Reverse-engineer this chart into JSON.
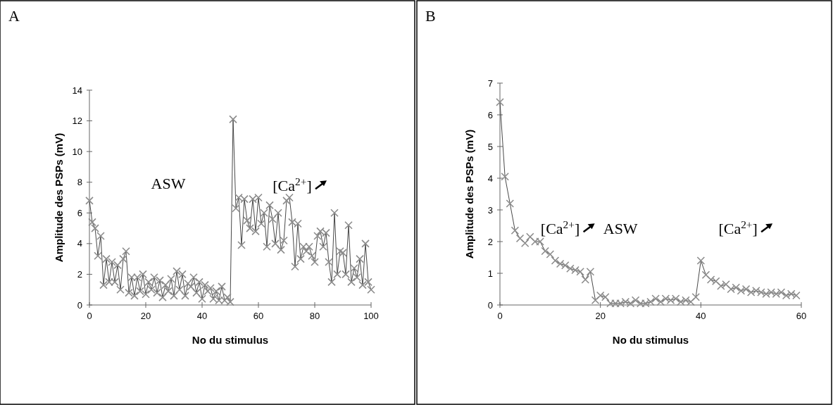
{
  "chart_data": [
    {
      "type": "line",
      "title": "A",
      "xlabel": "No du stimulus",
      "ylabel": "Amplitude des PSPs (mV)",
      "xlim": [
        0,
        100
      ],
      "xticks": [
        0,
        20,
        40,
        60,
        80,
        100
      ],
      "ylim": [
        0,
        14
      ],
      "yticks": [
        0,
        2,
        4,
        6,
        8,
        10,
        12,
        14
      ],
      "marker": "cross",
      "grid": false,
      "annotations": [
        "ASW",
        "[Ca$^{2+}$]"
      ],
      "series": [
        {
          "color": "#8c8c8c",
          "x": [
            0,
            1,
            2,
            3,
            4,
            5,
            6,
            7,
            8,
            9,
            10,
            11,
            12,
            13,
            14,
            15,
            16,
            17,
            18,
            19,
            20,
            21,
            22,
            23,
            24,
            25,
            26,
            27,
            28,
            29,
            30,
            31,
            32,
            33,
            34,
            35,
            36,
            37,
            38,
            39,
            40,
            41,
            42,
            43,
            44,
            45,
            46,
            47,
            48,
            49,
            50,
            51,
            52,
            53,
            54,
            55,
            56,
            57,
            58,
            59,
            60,
            61,
            62,
            63,
            64,
            65,
            66,
            67,
            68,
            69,
            70,
            71,
            72,
            73,
            74,
            75,
            76,
            77,
            78,
            79,
            80,
            81,
            82,
            83,
            84,
            85,
            86,
            87,
            88,
            89,
            90,
            91,
            92,
            93,
            94,
            95,
            96,
            97,
            98,
            99,
            100
          ],
          "values": [
            6.8,
            5.4,
            5.0,
            3.2,
            4.5,
            1.3,
            3.0,
            1.5,
            2.8,
            1.5,
            2.6,
            1.0,
            3.0,
            3.5,
            0.8,
            1.8,
            0.6,
            1.8,
            0.9,
            2.0,
            0.7,
            1.5,
            1.0,
            1.8,
            0.8,
            1.6,
            0.5,
            1.3,
            0.9,
            1.7,
            0.6,
            2.2,
            1.0,
            2.0,
            0.6,
            1.4,
            1.2,
            1.8,
            0.8,
            1.5,
            0.4,
            1.3,
            0.9,
            1.1,
            0.4,
            0.9,
            0.3,
            1.2,
            0.3,
            0.5,
            0.2,
            12.1,
            6.3,
            7.0,
            3.9,
            6.9,
            5.5,
            5.0,
            6.9,
            4.8,
            7.0,
            5.3,
            6.0,
            3.8,
            6.5,
            5.6,
            4.0,
            6.0,
            3.6,
            4.2,
            6.8,
            7.0,
            5.4,
            2.5,
            5.3,
            3.0,
            3.8,
            3.5,
            3.8,
            3.2,
            2.8,
            4.5,
            4.8,
            3.8,
            4.7,
            2.8,
            1.5,
            6.0,
            2.0,
            3.5,
            3.4,
            2.0,
            5.2,
            1.5,
            2.4,
            1.8,
            3.0,
            1.3,
            4.0,
            1.5,
            1.0
          ]
        }
      ]
    },
    {
      "type": "line",
      "title": "B",
      "xlabel": "No du stimulus",
      "ylabel": "Amplitude des PSPs (mV)",
      "xlim": [
        0,
        60
      ],
      "xticks": [
        0,
        20,
        40,
        60
      ],
      "ylim": [
        0,
        7
      ],
      "yticks": [
        0,
        1,
        2,
        3,
        4,
        5,
        6,
        7
      ],
      "marker": "cross",
      "grid": false,
      "annotations": [
        "[Ca$^{2+}$]",
        "ASW",
        "[Ca$^{2+}$]"
      ],
      "series": [
        {
          "color": "#8c8c8c",
          "x": [
            0,
            1,
            2,
            3,
            4,
            5,
            6,
            7,
            8,
            9,
            10,
            11,
            12,
            13,
            14,
            15,
            16,
            17,
            18,
            19,
            20,
            21,
            22,
            23,
            24,
            25,
            26,
            27,
            28,
            29,
            30,
            31,
            32,
            33,
            34,
            35,
            36,
            37,
            38,
            39,
            40,
            41,
            42,
            43,
            44,
            45,
            46,
            47,
            48,
            49,
            50,
            51,
            52,
            53,
            54,
            55,
            56,
            57,
            58,
            59
          ],
          "values": [
            6.4,
            4.05,
            3.2,
            2.35,
            2.1,
            1.95,
            2.15,
            2.0,
            2.0,
            1.7,
            1.6,
            1.4,
            1.3,
            1.25,
            1.15,
            1.1,
            1.05,
            0.8,
            1.05,
            0.15,
            0.3,
            0.25,
            0.05,
            0.05,
            0.05,
            0.1,
            0.05,
            0.15,
            0.05,
            0.05,
            0.1,
            0.2,
            0.1,
            0.2,
            0.15,
            0.2,
            0.1,
            0.15,
            0.1,
            0.25,
            1.4,
            0.95,
            0.8,
            0.75,
            0.6,
            0.65,
            0.5,
            0.55,
            0.45,
            0.5,
            0.4,
            0.45,
            0.4,
            0.35,
            0.4,
            0.35,
            0.4,
            0.3,
            0.35,
            0.3
          ]
        }
      ]
    }
  ]
}
